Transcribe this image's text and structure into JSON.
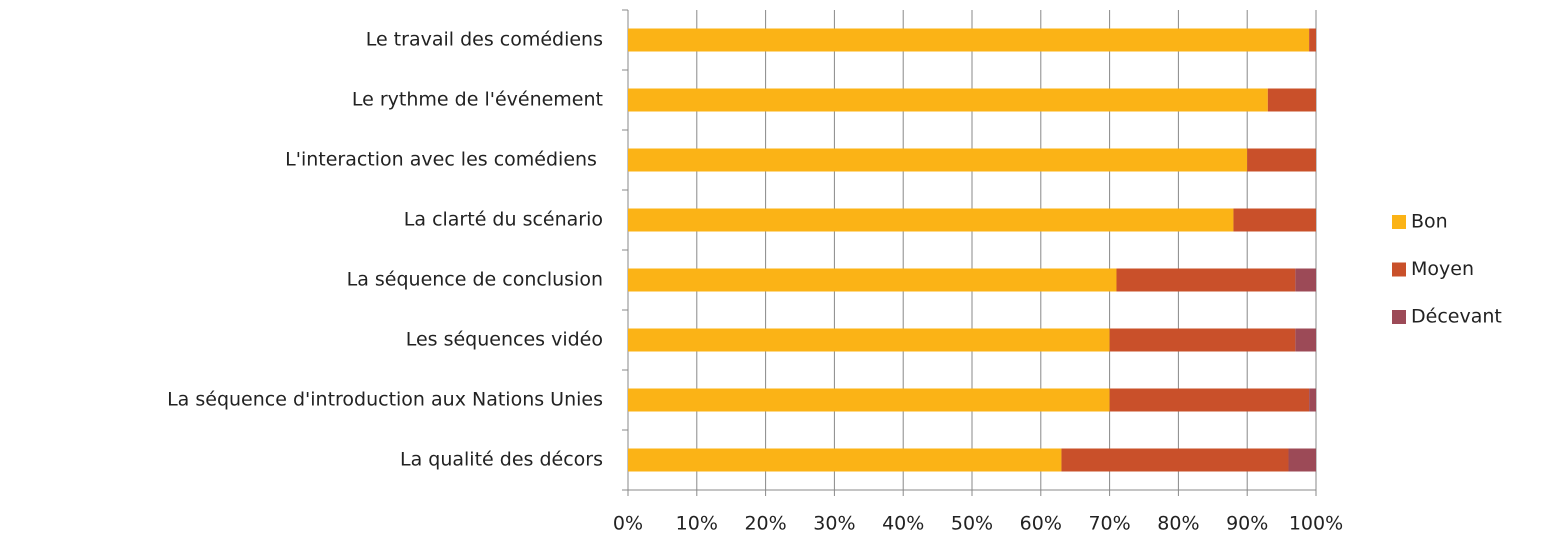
{
  "chart_data": {
    "type": "stacked-bar-horizontal",
    "categories": [
      "Le travail des comédiens",
      "Le rythme de l'événement",
      "L'interaction avec les comédiens ",
      "La clarté du scénario",
      "La séquence de conclusion",
      "Les séquences vidéo",
      "La séquence d'introduction aux Nations Unies",
      "La qualité des décors"
    ],
    "series": [
      {
        "name": "Bon",
        "color": "#fbb316",
        "values": [
          99,
          93,
          90,
          88,
          71,
          70,
          70,
          63
        ]
      },
      {
        "name": "Moyen",
        "color": "#c9502a",
        "values": [
          1,
          7,
          10,
          12,
          26,
          27,
          29,
          33
        ]
      },
      {
        "name": "Décevant",
        "color": "#9c4a57",
        "values": [
          0,
          0,
          0,
          0,
          3,
          3,
          1,
          4
        ]
      }
    ],
    "xlim": [
      0,
      100
    ],
    "xticks": [
      {
        "value": 0,
        "label": "0%"
      },
      {
        "value": 10,
        "label": "10%"
      },
      {
        "value": 20,
        "label": "20%"
      },
      {
        "value": 30,
        "label": "30%"
      },
      {
        "value": 40,
        "label": "40%"
      },
      {
        "value": 50,
        "label": "50%"
      },
      {
        "value": 60,
        "label": "60%"
      },
      {
        "value": 70,
        "label": "70%"
      },
      {
        "value": 80,
        "label": "80%"
      },
      {
        "value": 90,
        "label": "90%"
      },
      {
        "value": 100,
        "label": "100%"
      }
    ],
    "grid": true,
    "legend": "right"
  }
}
